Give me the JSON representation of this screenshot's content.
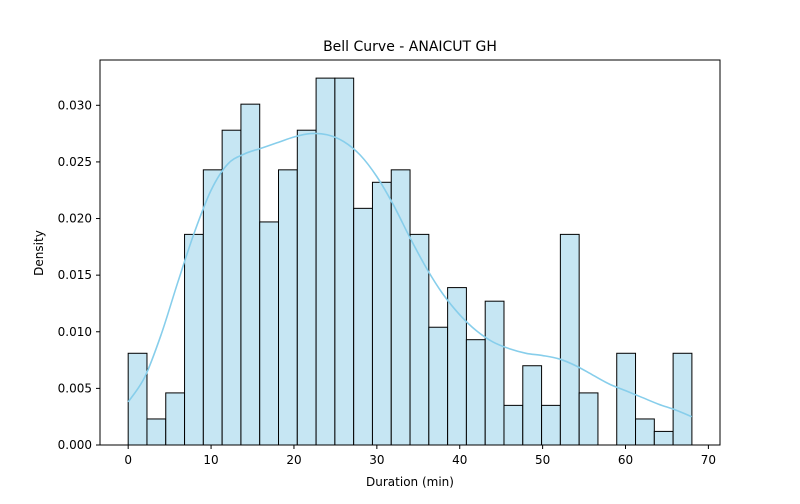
{
  "chart_data": {
    "type": "bar",
    "title": "Bell Curve - ANAICUT GH",
    "xlabel": "Duration (min)",
    "ylabel": "Density",
    "xlim": [
      -3.4,
      71.4
    ],
    "ylim": [
      0,
      0.034
    ],
    "xticks": [
      0,
      10,
      20,
      30,
      40,
      50,
      60,
      70
    ],
    "yticks": [
      0.0,
      0.005,
      0.01,
      0.015,
      0.02,
      0.025,
      0.03
    ],
    "ytick_labels": [
      "0.000",
      "0.005",
      "0.010",
      "0.015",
      "0.020",
      "0.025",
      "0.030"
    ],
    "grid": false,
    "legend": "none",
    "colors": {
      "bar_fill": "#c6e6f3",
      "bar_edge": "#000000",
      "kde_line": "#87ceeb"
    },
    "bins": {
      "start": 0,
      "width": 2.267,
      "values": [
        0.0081,
        0.0023,
        0.0046,
        0.0186,
        0.0243,
        0.0278,
        0.0301,
        0.0197,
        0.0243,
        0.0278,
        0.0324,
        0.0324,
        0.0209,
        0.0232,
        0.0243,
        0.0186,
        0.0104,
        0.0139,
        0.0093,
        0.0127,
        0.0035,
        0.007,
        0.0035,
        0.0186,
        0.0046,
        0.0,
        0.0081,
        0.0023,
        0.0012,
        0.0081
      ]
    },
    "kde": {
      "x": [
        0,
        2,
        4,
        6,
        8,
        10,
        12,
        14,
        16,
        18,
        20,
        22,
        24,
        26,
        28,
        30,
        32,
        34,
        36,
        38,
        40,
        42,
        44,
        46,
        48,
        50,
        52,
        54,
        56,
        58,
        60,
        62,
        64,
        66,
        68
      ],
      "y": [
        0.0038,
        0.006,
        0.0098,
        0.0144,
        0.0188,
        0.0225,
        0.0248,
        0.0257,
        0.0262,
        0.0267,
        0.0272,
        0.0275,
        0.0274,
        0.0268,
        0.0256,
        0.0237,
        0.0212,
        0.0183,
        0.0156,
        0.0133,
        0.0115,
        0.0101,
        0.0091,
        0.0085,
        0.0081,
        0.0079,
        0.0076,
        0.007,
        0.0062,
        0.0054,
        0.0048,
        0.0042,
        0.0036,
        0.0031,
        0.0025
      ]
    }
  }
}
